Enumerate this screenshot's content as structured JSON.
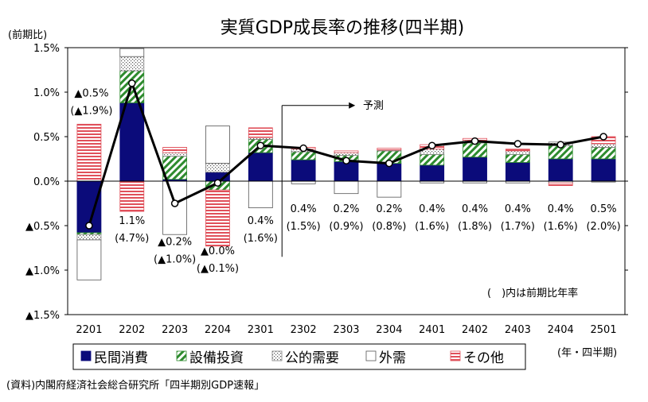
{
  "chart_data": {
    "type": "bar",
    "title": "実質GDP成長率の推移(四半期)",
    "ylabel": "(前期比)",
    "xunit": "(年・四半期)",
    "ylim": [
      -1.5,
      1.5
    ],
    "yticks": [
      {
        "value": 1.5,
        "label": "1.5%"
      },
      {
        "value": 1.0,
        "label": "1.0%"
      },
      {
        "value": 0.5,
        "label": "0.5%"
      },
      {
        "value": 0.0,
        "label": "0.0%"
      },
      {
        "value": -0.5,
        "label": "▲0.5%"
      },
      {
        "value": -1.0,
        "label": "▲1.0%"
      },
      {
        "value": -1.5,
        "label": "▲1.5%"
      }
    ],
    "categories": [
      "2201",
      "2202",
      "2203",
      "2204",
      "2301",
      "2302",
      "2303",
      "2304",
      "2401",
      "2402",
      "2403",
      "2404",
      "2501"
    ],
    "series": [
      {
        "name": "民間消費",
        "color": "#0b0b7a",
        "pattern": "solid",
        "values": [
          -0.58,
          0.88,
          0.02,
          0.1,
          0.32,
          0.24,
          0.22,
          0.2,
          0.18,
          0.27,
          0.21,
          0.25,
          0.25
        ]
      },
      {
        "name": "設備投資",
        "color": "#2e8b2e",
        "pattern": "diag",
        "values": [
          -0.02,
          0.36,
          0.26,
          -0.1,
          0.15,
          0.09,
          0.07,
          0.14,
          0.12,
          0.16,
          0.09,
          0.15,
          0.13
        ]
      },
      {
        "name": "公的需要",
        "color": "#808080",
        "pattern": "dots",
        "values": [
          -0.06,
          0.16,
          0.04,
          0.1,
          0.02,
          0.03,
          0.03,
          0.01,
          0.06,
          0.03,
          0.04,
          0.04,
          0.04
        ]
      },
      {
        "name": "外需",
        "color": "#000000",
        "pattern": "white",
        "values": [
          -0.45,
          0.09,
          -0.6,
          0.42,
          -0.3,
          -0.03,
          -0.14,
          -0.18,
          -0.02,
          -0.02,
          -0.02,
          -0.02,
          -0.01
        ]
      },
      {
        "name": "その他",
        "color": "#e0505a",
        "pattern": "hstripe",
        "values": [
          0.64,
          -0.34,
          0.06,
          -0.63,
          0.11,
          0.02,
          0.02,
          0.02,
          0.05,
          0.02,
          0.02,
          -0.03,
          0.08
        ]
      }
    ],
    "line": {
      "name": "実質GDP成長率",
      "values": [
        -0.5,
        1.1,
        -0.25,
        -0.02,
        0.4,
        0.37,
        0.23,
        0.2,
        0.4,
        0.45,
        0.42,
        0.41,
        0.5
      ]
    },
    "bar_labels": [
      {
        "category": "2201",
        "label": "▲0.5%",
        "sub": "(▲1.9%)",
        "value": 0.95
      },
      {
        "category": "2202",
        "label": "1.1%",
        "sub": "(4.7%)",
        "value": -0.48
      },
      {
        "category": "2203",
        "label": "▲0.2%",
        "sub": "(▲1.0%)",
        "value": -0.72
      },
      {
        "category": "2204",
        "label": "▲0.0%",
        "sub": "(▲0.1%)",
        "value": -0.82
      },
      {
        "category": "2301",
        "label": "0.4%",
        "sub": "(1.6%)",
        "value": -0.48
      },
      {
        "category": "2302",
        "label": "0.4%",
        "sub": "(1.5%)",
        "value": -0.35
      },
      {
        "category": "2303",
        "label": "0.2%",
        "sub": "(0.9%)",
        "value": -0.35
      },
      {
        "category": "2304",
        "label": "0.2%",
        "sub": "(0.8%)",
        "value": -0.35
      },
      {
        "category": "2401",
        "label": "0.4%",
        "sub": "(1.6%)",
        "value": -0.35
      },
      {
        "category": "2402",
        "label": "0.4%",
        "sub": "(1.8%)",
        "value": -0.35
      },
      {
        "category": "2403",
        "label": "0.4%",
        "sub": "(1.7%)",
        "value": -0.35
      },
      {
        "category": "2404",
        "label": "0.4%",
        "sub": "(1.6%)",
        "value": -0.35
      },
      {
        "category": "2501",
        "label": "0.5%",
        "sub": "(2.0%)",
        "value": -0.35
      }
    ],
    "forecast_label": "予測",
    "note": "(　)内は前期比年率",
    "source": "(資料)内閣府経済社会総合研究所「四半期別GDP速報」"
  }
}
